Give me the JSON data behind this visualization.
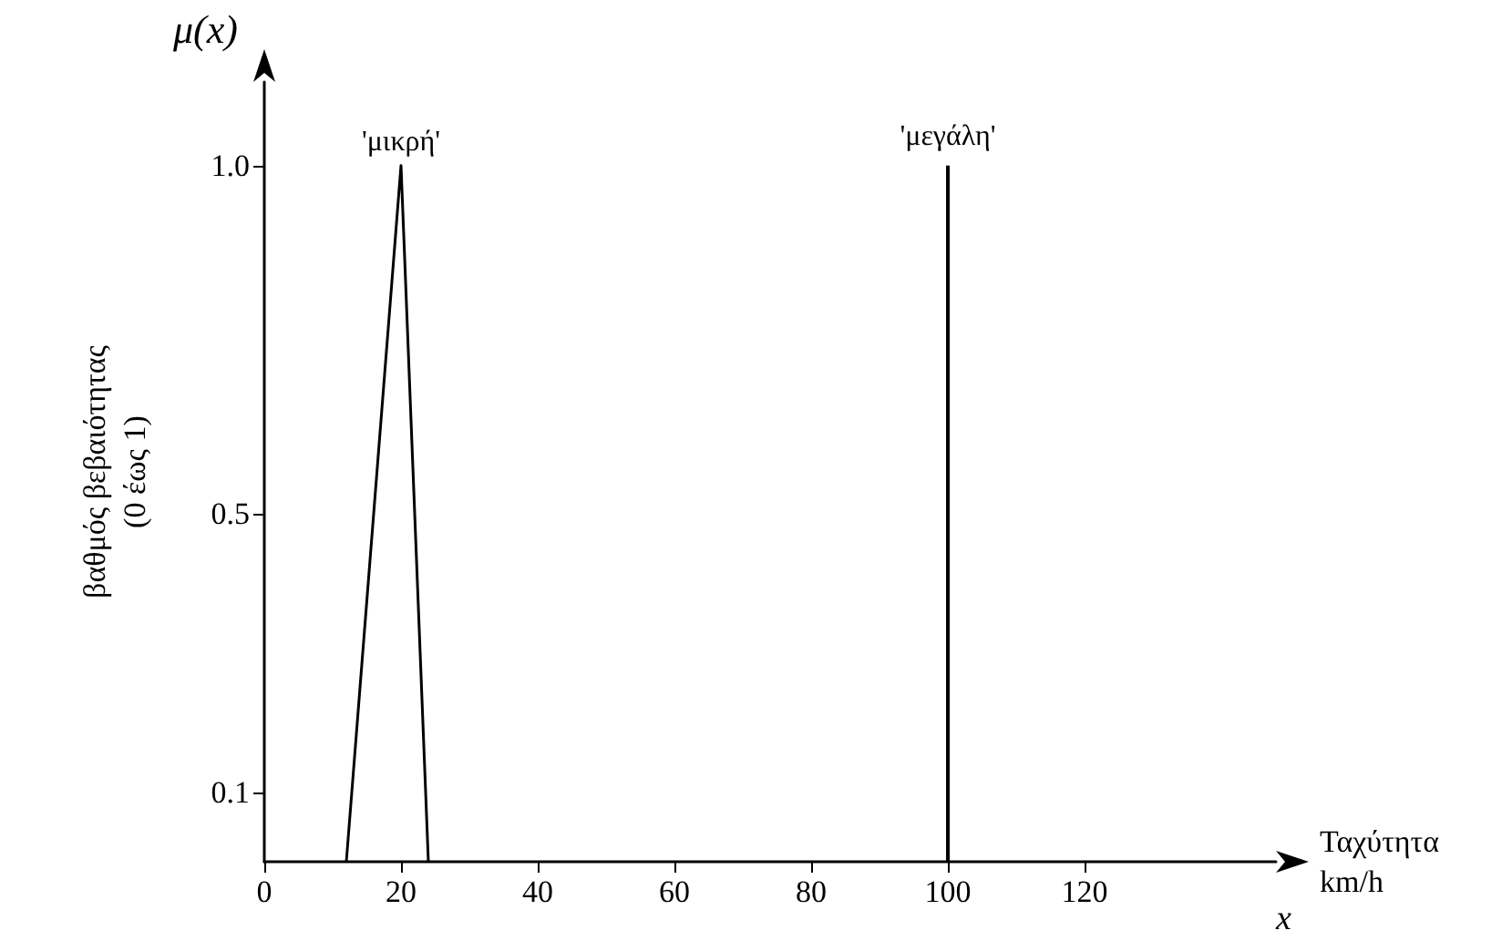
{
  "chart_data": {
    "type": "line",
    "xlabel": "Ταχύτητα\nkm/h",
    "ylabel": "βαθμός βεβαιότητας\n(0 έως 1)",
    "annotations": [
      "μ(x)",
      "x"
    ],
    "series": [
      {
        "name": "'μικρή'",
        "color": "#000000",
        "x": [
          12,
          20,
          24
        ],
        "values": [
          0,
          1,
          0
        ]
      },
      {
        "name": "'μεγάλη'",
        "type": "bar",
        "color": "#000000",
        "x": [
          100
        ],
        "values": [
          1
        ]
      }
    ],
    "xlim": [
      0,
      148
    ],
    "xticks": [
      0,
      20,
      40,
      60,
      80,
      100,
      120
    ],
    "ylim": [
      0,
      1.12
    ],
    "yticks": [
      {
        "value": 0.1,
        "label": "0.1"
      },
      {
        "value": 0.5,
        "label": "0.5"
      },
      {
        "value": 1,
        "label": "1.0"
      }
    ],
    "grid": false,
    "legend": false,
    "marker": "none",
    "line_style": "solid"
  }
}
